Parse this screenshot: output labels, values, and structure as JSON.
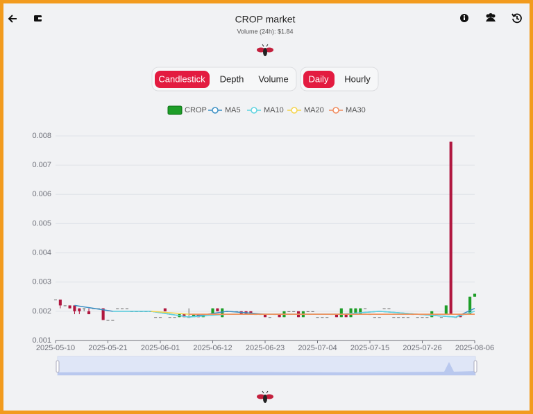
{
  "header": {
    "title": "CROP market",
    "subtitle": "Volume (24h): $1.84"
  },
  "tabs": {
    "chart_type": [
      "Candlestick",
      "Depth",
      "Volume"
    ],
    "interval": [
      "Daily",
      "Hourly"
    ]
  },
  "chart_data": {
    "type": "candlestick",
    "categories": [
      "2025-05-10",
      "2025-05-11",
      "2025-05-12",
      "2025-05-13",
      "2025-05-14",
      "2025-05-15",
      "2025-05-16",
      "2025-05-17",
      "2025-05-18",
      "2025-05-19",
      "2025-05-20",
      "2025-05-21",
      "2025-05-22",
      "2025-05-23",
      "2025-05-24",
      "2025-05-25",
      "2025-05-26",
      "2025-05-27",
      "2025-05-28",
      "2025-05-29",
      "2025-05-30",
      "2025-05-31",
      "2025-06-01",
      "2025-06-02",
      "2025-06-03",
      "2025-06-04",
      "2025-06-05",
      "2025-06-06",
      "2025-06-07",
      "2025-06-08",
      "2025-06-09",
      "2025-06-10",
      "2025-06-11",
      "2025-06-12",
      "2025-06-13",
      "2025-06-14",
      "2025-06-15",
      "2025-06-16",
      "2025-06-17",
      "2025-06-18",
      "2025-06-19",
      "2025-06-20",
      "2025-06-21",
      "2025-06-22",
      "2025-06-23",
      "2025-06-24",
      "2025-06-25",
      "2025-06-26",
      "2025-06-27",
      "2025-06-28",
      "2025-06-29",
      "2025-06-30",
      "2025-07-01",
      "2025-07-02",
      "2025-07-03",
      "2025-07-04",
      "2025-07-05",
      "2025-07-06",
      "2025-07-07",
      "2025-07-08",
      "2025-07-09",
      "2025-07-10",
      "2025-07-11",
      "2025-07-12",
      "2025-07-13",
      "2025-07-14",
      "2025-07-15",
      "2025-07-16",
      "2025-07-17",
      "2025-07-18",
      "2025-07-19",
      "2025-07-20",
      "2025-07-21",
      "2025-07-22",
      "2025-07-23",
      "2025-07-24",
      "2025-07-25",
      "2025-07-26",
      "2025-07-27",
      "2025-07-28",
      "2025-07-29",
      "2025-07-30",
      "2025-07-31",
      "2025-08-01",
      "2025-08-02",
      "2025-08-03",
      "2025-08-04",
      "2025-08-05",
      "2025-08-06"
    ],
    "xticks": [
      "2025-05-10",
      "2025-05-21",
      "2025-06-01",
      "2025-06-12",
      "2025-06-23",
      "2025-07-04",
      "2025-07-15",
      "2025-07-26",
      "2025-08-06"
    ],
    "ylim": [
      0.001,
      0.008
    ],
    "yticks": [
      0.001,
      0.002,
      0.003,
      0.004,
      0.005,
      0.006,
      0.007,
      0.008
    ],
    "grid": true,
    "series": [
      {
        "name": "CROP",
        "color": "#1e9e28",
        "up_color": "#1e9e28",
        "down_color": "#b0173f",
        "flat_color": "#666666",
        "open": [
          0.0024,
          0.0024,
          0.0022,
          0.0022,
          0.0022,
          0.0021,
          0.0021,
          0.002,
          0.0021,
          0.0021,
          0.0021,
          0.0017,
          0.0017,
          0.0021,
          0.0021,
          0.0021,
          0.002,
          0.002,
          0.002,
          0.002,
          0.002,
          0.0018,
          0.0018,
          0.0021,
          0.0018,
          0.0018,
          0.0018,
          0.0019,
          0.0018,
          0.0018,
          0.0019,
          0.0018,
          0.0019,
          0.0019,
          0.0021,
          0.0018,
          0.002,
          0.002,
          0.002,
          0.002,
          0.002,
          0.002,
          0.0019,
          0.0019,
          0.0019,
          0.0018,
          0.0019,
          0.0019,
          0.0018,
          0.002,
          0.002,
          0.002,
          0.0018,
          0.002,
          0.002,
          0.0018,
          0.0018,
          0.0018,
          0.0019,
          0.0019,
          0.0018,
          0.0019,
          0.0018,
          0.0019,
          0.0019,
          0.0021,
          0.0019,
          0.0018,
          0.0018,
          0.0021,
          0.0021,
          0.0018,
          0.0018,
          0.0018,
          0.0018,
          0.0019,
          0.0018,
          0.0018,
          0.0018,
          0.0018,
          0.0019,
          0.0018,
          0.0019,
          0.0078,
          0.0018,
          0.0019,
          0.0019,
          0.0019,
          0.0025
        ],
        "high": [
          0.0024,
          0.0024,
          0.0022,
          0.0022,
          0.0022,
          0.0021,
          0.0021,
          0.0021,
          0.0021,
          0.0021,
          0.0021,
          0.0017,
          0.0017,
          0.0021,
          0.0021,
          0.0021,
          0.002,
          0.002,
          0.002,
          0.002,
          0.002,
          0.0018,
          0.0018,
          0.0021,
          0.0018,
          0.0018,
          0.0019,
          0.0019,
          0.0021,
          0.0019,
          0.0019,
          0.0019,
          0.0019,
          0.0021,
          0.0021,
          0.0021,
          0.002,
          0.002,
          0.002,
          0.002,
          0.002,
          0.002,
          0.0019,
          0.0019,
          0.0019,
          0.0018,
          0.0019,
          0.0019,
          0.002,
          0.002,
          0.002,
          0.002,
          0.002,
          0.002,
          0.002,
          0.0018,
          0.0018,
          0.0018,
          0.0019,
          0.0019,
          0.0021,
          0.0019,
          0.0021,
          0.0021,
          0.0021,
          0.0021,
          0.0019,
          0.0018,
          0.0018,
          0.0021,
          0.0021,
          0.0018,
          0.0018,
          0.0018,
          0.0018,
          0.0019,
          0.0018,
          0.0018,
          0.0018,
          0.002,
          0.0019,
          0.0018,
          0.0022,
          0.0078,
          0.0018,
          0.0019,
          0.0019,
          0.0025,
          0.0026
        ],
        "low": [
          0.0024,
          0.0021,
          0.0022,
          0.0021,
          0.0019,
          0.0019,
          0.002,
          0.0019,
          0.0021,
          0.0021,
          0.0017,
          0.0017,
          0.0017,
          0.0021,
          0.0021,
          0.0021,
          0.002,
          0.002,
          0.002,
          0.002,
          0.002,
          0.0018,
          0.0018,
          0.002,
          0.0018,
          0.0018,
          0.0018,
          0.0018,
          0.0018,
          0.0018,
          0.0018,
          0.0018,
          0.0019,
          0.0019,
          0.002,
          0.0018,
          0.002,
          0.002,
          0.002,
          0.0019,
          0.0019,
          0.0019,
          0.0019,
          0.0019,
          0.0018,
          0.0018,
          0.0019,
          0.0018,
          0.0018,
          0.002,
          0.002,
          0.0018,
          0.0018,
          0.002,
          0.002,
          0.0018,
          0.0018,
          0.0018,
          0.0019,
          0.0018,
          0.0018,
          0.0018,
          0.0018,
          0.0019,
          0.0019,
          0.0021,
          0.0019,
          0.0018,
          0.0018,
          0.0021,
          0.0021,
          0.0018,
          0.0018,
          0.0018,
          0.0018,
          0.0019,
          0.0018,
          0.0018,
          0.0018,
          0.0018,
          0.0019,
          0.0018,
          0.0019,
          0.0019,
          0.0018,
          0.0018,
          0.0019,
          0.0019,
          0.0025
        ],
        "close": [
          0.0024,
          0.0022,
          0.0022,
          0.0021,
          0.002,
          0.002,
          0.0021,
          0.0019,
          0.0021,
          0.0021,
          0.0017,
          0.0017,
          0.0017,
          0.0021,
          0.0021,
          0.0021,
          0.002,
          0.002,
          0.002,
          0.002,
          0.002,
          0.0018,
          0.0018,
          0.002,
          0.0018,
          0.0018,
          0.0019,
          0.0018,
          0.0018,
          0.0019,
          0.0018,
          0.0019,
          0.0019,
          0.0021,
          0.002,
          0.0021,
          0.002,
          0.002,
          0.002,
          0.0019,
          0.0019,
          0.0019,
          0.0019,
          0.0019,
          0.0018,
          0.0018,
          0.0019,
          0.0018,
          0.002,
          0.002,
          0.002,
          0.0018,
          0.002,
          0.002,
          0.002,
          0.0018,
          0.0018,
          0.0018,
          0.0019,
          0.0018,
          0.0021,
          0.0018,
          0.0021,
          0.0021,
          0.0021,
          0.0021,
          0.0019,
          0.0018,
          0.0018,
          0.0021,
          0.0021,
          0.0018,
          0.0018,
          0.0018,
          0.0018,
          0.0019,
          0.0018,
          0.0018,
          0.0018,
          0.002,
          0.0019,
          0.0018,
          0.0022,
          0.0019,
          0.0018,
          0.0018,
          0.0019,
          0.0025,
          0.0026
        ]
      },
      {
        "name": "MA5",
        "color": "#3b8fc4",
        "x": [
          "2025-05-14",
          "2025-05-22",
          "2025-05-30",
          "2025-06-07",
          "2025-06-15",
          "2025-06-23",
          "2025-07-01",
          "2025-07-09",
          "2025-07-17",
          "2025-07-25",
          "2025-08-02",
          "2025-08-06"
        ],
        "values": [
          0.0022,
          0.002,
          0.002,
          0.0018,
          0.002,
          0.0019,
          0.0019,
          0.0019,
          0.002,
          0.0019,
          0.0018,
          0.0021
        ]
      },
      {
        "name": "MA10",
        "color": "#5fd3e0",
        "x": [
          "2025-05-22",
          "2025-05-30",
          "2025-06-07",
          "2025-06-15",
          "2025-06-23",
          "2025-07-01",
          "2025-07-09",
          "2025-07-17",
          "2025-07-25",
          "2025-08-02",
          "2025-08-06"
        ],
        "values": [
          0.002,
          0.002,
          0.0018,
          0.0019,
          0.0019,
          0.0019,
          0.0019,
          0.002,
          0.0019,
          0.0018,
          0.002
        ]
      },
      {
        "name": "MA20",
        "color": "#f5d44b",
        "x": [
          "2025-05-30",
          "2025-06-07",
          "2025-06-15",
          "2025-06-23",
          "2025-07-01",
          "2025-07-09",
          "2025-07-17",
          "2025-07-25",
          "2025-08-02",
          "2025-08-06"
        ],
        "values": [
          0.002,
          0.0019,
          0.0019,
          0.0019,
          0.0019,
          0.0019,
          0.0019,
          0.0019,
          0.0019,
          0.0019
        ]
      },
      {
        "name": "MA30",
        "color": "#f08a5d",
        "x": [
          "2025-06-07",
          "2025-06-15",
          "2025-06-23",
          "2025-07-01",
          "2025-07-09",
          "2025-07-17",
          "2025-07-25",
          "2025-08-02",
          "2025-08-06"
        ],
        "values": [
          0.0019,
          0.0019,
          0.0019,
          0.0019,
          0.0019,
          0.0019,
          0.0019,
          0.0019,
          0.0019
        ]
      }
    ]
  }
}
